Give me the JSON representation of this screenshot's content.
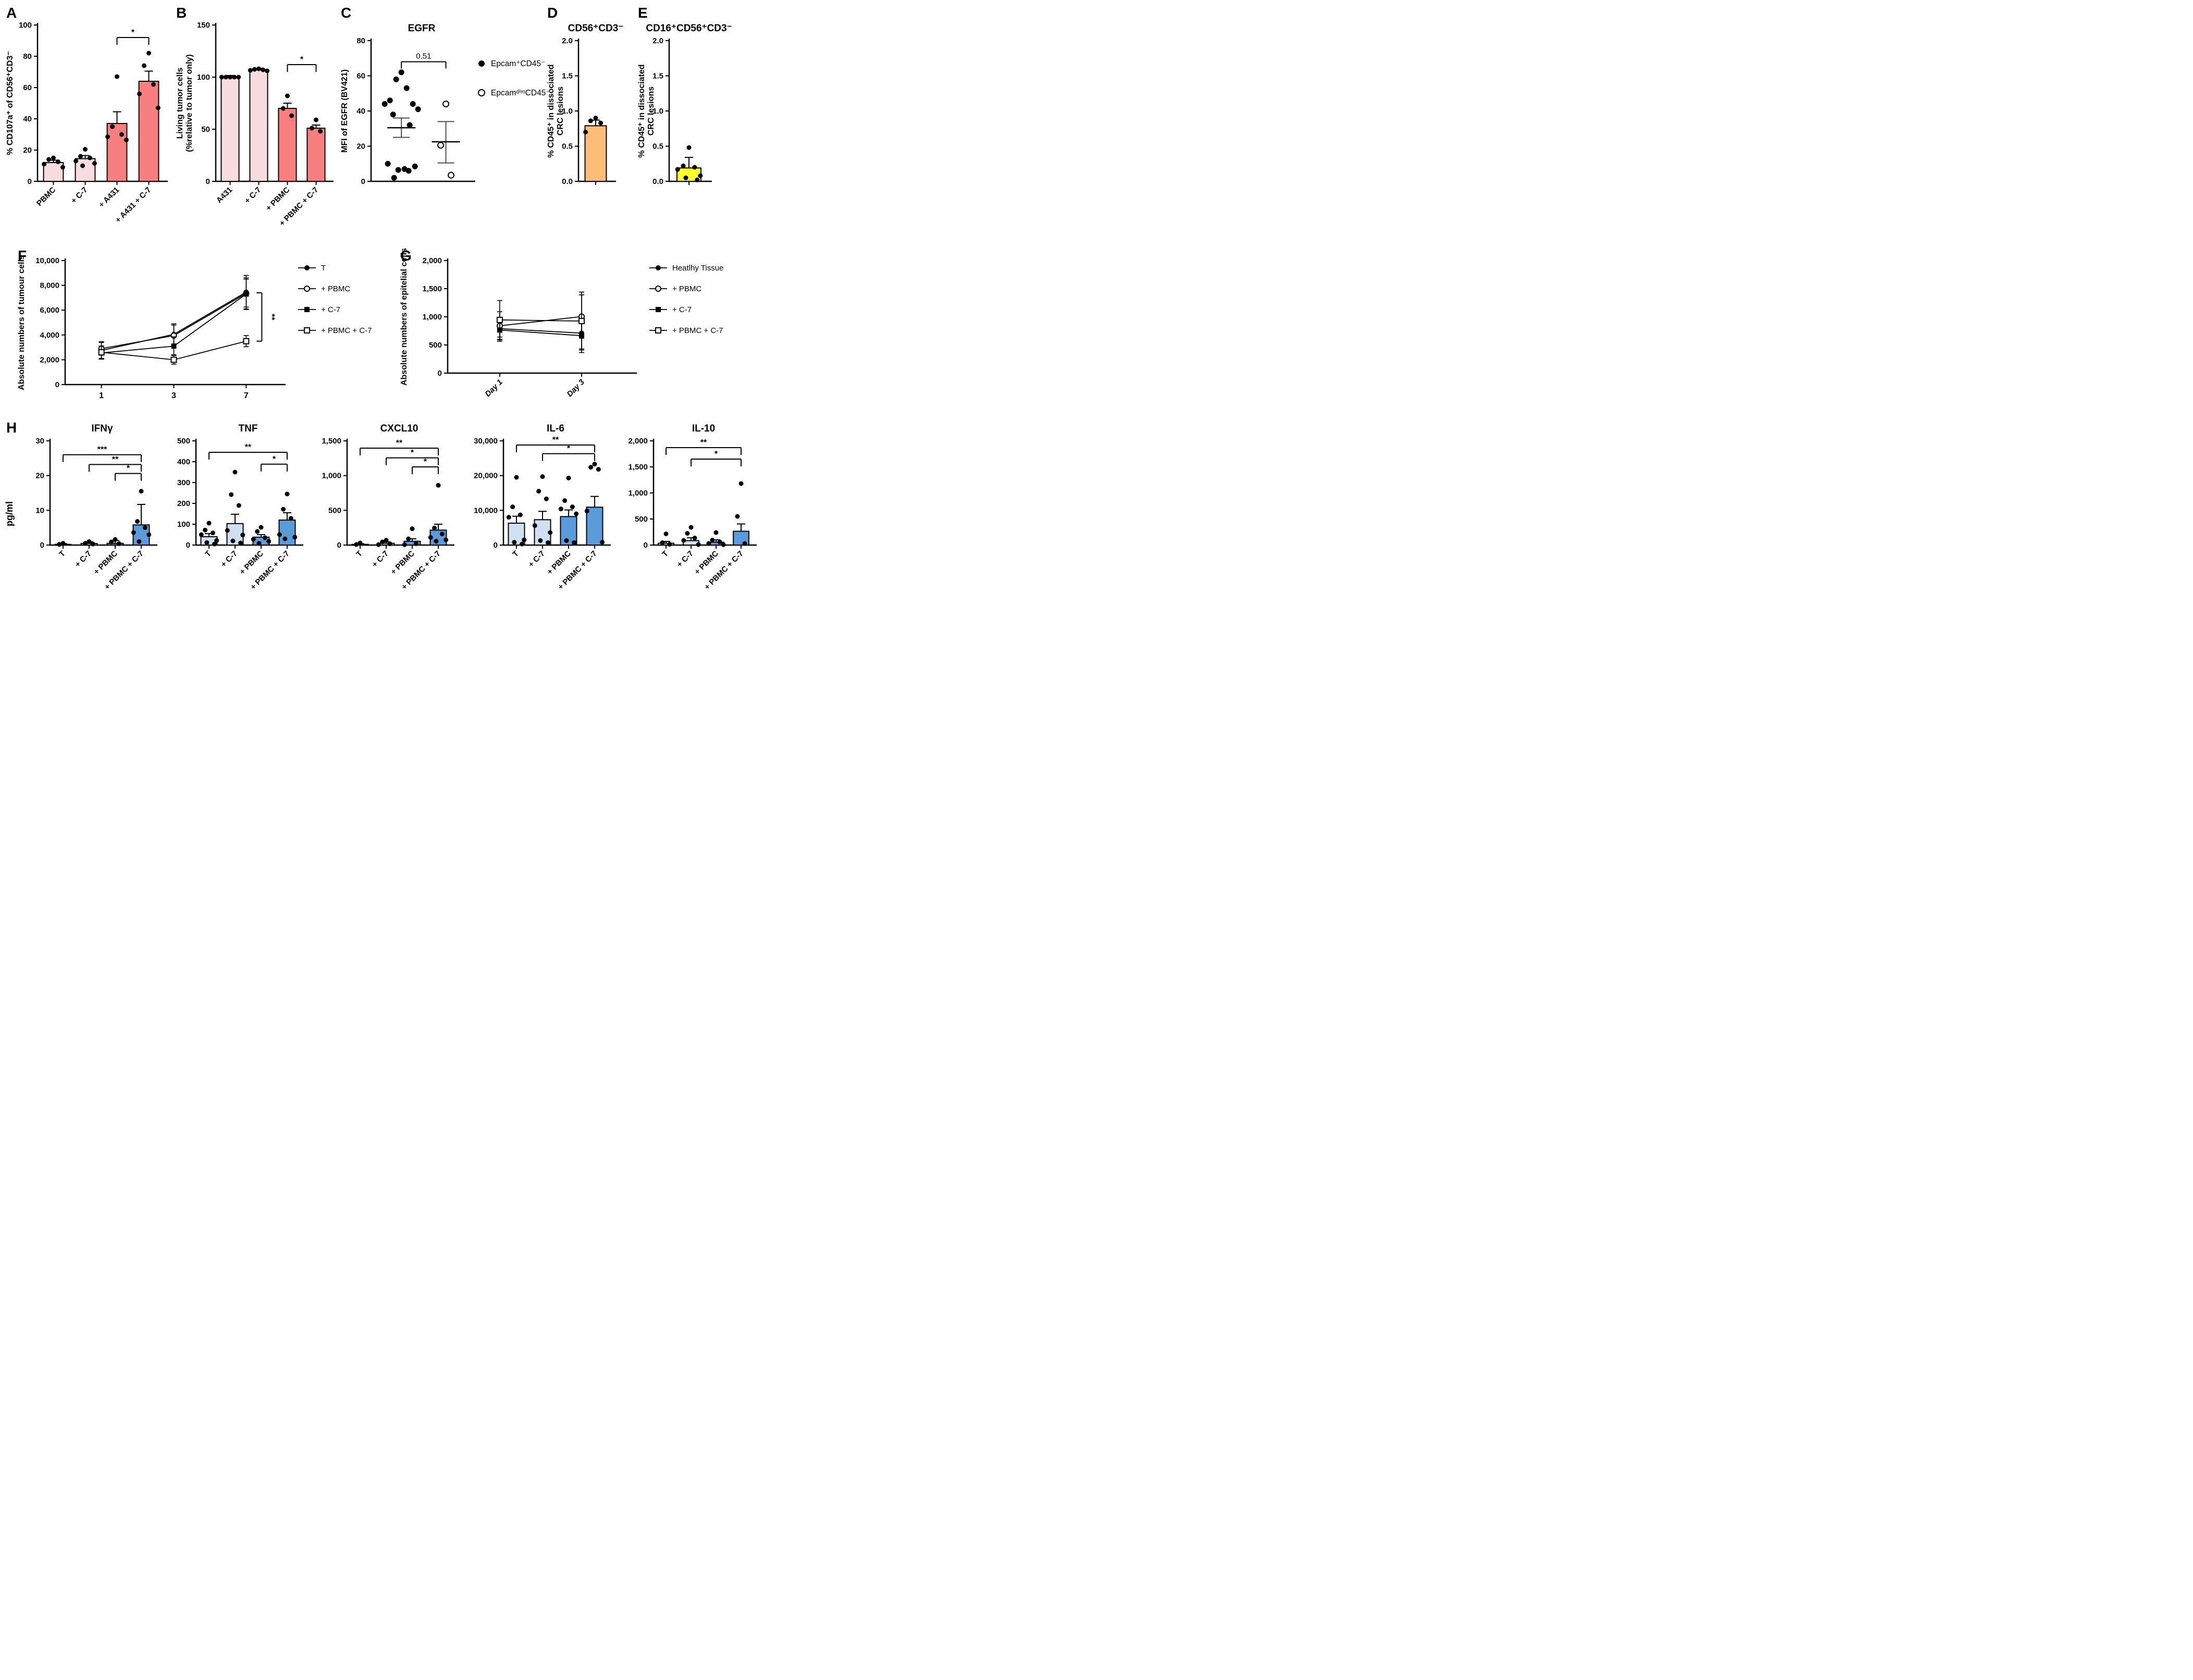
{
  "figure_description": "Multi-panel scientific figure with bar, scatter and line charts (panels A-H)",
  "colors": {
    "light_pink": "#f9dce0",
    "salmon": "#f87f80",
    "orange": "#fcbd79",
    "yellow": "#ffff2b",
    "light_blue": "#cfe0f3",
    "medium_blue": "#5b9bd9",
    "black": "#000000",
    "error_grey": "#4d4d4d"
  },
  "chart_data": [
    {
      "id": "A",
      "type": "bar",
      "panel_label": "A",
      "ylabel": "% CD107a⁺ of CD56⁺CD3⁻",
      "ylim": [
        0,
        100
      ],
      "ytick_values": [
        0,
        20,
        40,
        60,
        80,
        100
      ],
      "ytick_labels": [
        "0",
        "20",
        "40",
        "60",
        "80",
        "100"
      ],
      "categories": [
        "PBMC",
        "+ C-7",
        "+ A431",
        "+ A431 + C-7"
      ],
      "values": [
        12,
        14.5,
        37,
        64
      ],
      "errors": [
        1.5,
        2,
        7.5,
        6.5
      ],
      "bar_colors": [
        "light_pink",
        "light_pink",
        "salmon",
        "salmon"
      ],
      "points": [
        [
          15,
          14,
          12.5,
          11,
          9
        ],
        [
          20.5,
          16,
          15,
          13,
          11.5,
          10
        ],
        [
          67,
          35,
          30,
          28.5,
          26.5
        ],
        [
          82,
          74,
          62,
          56,
          47
        ]
      ],
      "sig": [
        {
          "a": 2,
          "b": 3,
          "y": 92,
          "label": "*"
        }
      ],
      "x_rotate": 45
    },
    {
      "id": "B",
      "type": "bar",
      "panel_label": "B",
      "ylabel": [
        "Living tumor cells",
        "(%relative to tumor only)"
      ],
      "ylim": [
        0,
        150
      ],
      "ytick_values": [
        0,
        50,
        100,
        150
      ],
      "ytick_labels": [
        "0",
        "50",
        "100",
        "150"
      ],
      "categories": [
        "A431",
        "+ C-7",
        "+ PBMC",
        "+ PBMC + C-7"
      ],
      "values": [
        100,
        107,
        70,
        51
      ],
      "errors": [
        1.5,
        1.5,
        5,
        3
      ],
      "bar_colors": [
        "light_pink",
        "light_pink",
        "salmon",
        "salmon"
      ],
      "points": [
        [
          100,
          100,
          100,
          100,
          100
        ],
        [
          108,
          107.5,
          107,
          106.5,
          106
        ],
        [
          82,
          70,
          63
        ],
        [
          59,
          51,
          48
        ]
      ],
      "sig": [
        {
          "a": 2,
          "b": 3,
          "y": 112,
          "label": "*"
        }
      ],
      "x_rotate": 45
    },
    {
      "id": "C",
      "type": "scatter",
      "panel_label": "C",
      "title": "EGFR",
      "ylabel": "MFI of EGFR (BV421)",
      "ylim": [
        0,
        80
      ],
      "ytick_values": [
        0,
        20,
        40,
        60,
        80
      ],
      "ytick_labels": [
        "0",
        "20",
        "40",
        "60",
        "80"
      ],
      "groups": [
        {
          "name": "Epcam⁺CD45⁻",
          "marker": "circle-filled",
          "points": [
            62,
            58,
            53,
            46,
            44,
            44,
            41,
            38,
            32,
            10,
            8.5,
            7,
            6.5,
            6,
            2
          ],
          "mean": 30.5,
          "sem_lo": 25,
          "sem_hi": 36
        },
        {
          "name": "EpcamᵈⁱᵐCD45⁻",
          "marker": "circle-open",
          "points": [
            44,
            20.5,
            3.5
          ],
          "mean": 22.5,
          "sem_lo": 10.5,
          "sem_hi": 34
        }
      ],
      "comparison": {
        "label": "0.51",
        "y": 68
      }
    },
    {
      "id": "D",
      "type": "bar",
      "panel_label": "D",
      "title": "CD56⁺CD3⁻",
      "ylabel": [
        "% CD45⁺ in dissociated",
        "CRC lesions"
      ],
      "ylim": [
        0,
        2
      ],
      "ytick_values": [
        0,
        0.5,
        1.0,
        1.5,
        2.0
      ],
      "ytick_labels": [
        "0.0",
        "0.5",
        "1.0",
        "1.5",
        "2.0"
      ],
      "categories": [
        ""
      ],
      "values": [
        0.79
      ],
      "errors": [
        0.08
      ],
      "bar_colors": [
        "orange"
      ],
      "points": [
        [
          0.9,
          0.86,
          0.83,
          0.7
        ]
      ],
      "sig": []
    },
    {
      "id": "E",
      "type": "bar",
      "panel_label": "E",
      "title": "CD16⁺CD56⁺CD3⁻",
      "ylabel": [
        "% CD45⁺ in dissociated",
        "CRC lesions"
      ],
      "ylim": [
        0,
        2
      ],
      "ytick_values": [
        0,
        0.5,
        1.0,
        1.5,
        2.0
      ],
      "ytick_labels": [
        "0.0",
        "0.5",
        "1.0",
        "1.5",
        "2.0"
      ],
      "categories": [
        ""
      ],
      "values": [
        0.19
      ],
      "errors": [
        0.15
      ],
      "bar_colors": [
        "yellow"
      ],
      "points": [
        [
          0.48,
          0.22,
          0.2,
          0.17,
          0.08,
          0.05,
          0.02
        ]
      ],
      "sig": []
    },
    {
      "id": "F",
      "type": "line",
      "panel_label": "F",
      "ylabel": "Absolute numbers of tumour cells",
      "ylim": [
        0,
        10000
      ],
      "ytick_values": [
        0,
        2000,
        4000,
        6000,
        8000,
        10000
      ],
      "ytick_labels": [
        "0",
        "2,000",
        "4,000",
        "6,000",
        "8,000",
        "10,000"
      ],
      "x_categories": [
        "1",
        "3",
        "7"
      ],
      "x_rotate": 0,
      "series": [
        {
          "name": "T",
          "marker": "circle-filled",
          "values": [
            2750,
            4050,
            7450
          ],
          "err_lo": [
            2050,
            3200,
            6100
          ],
          "err_hi": [
            3450,
            4900,
            8800
          ]
        },
        {
          "name": "+ PBMC",
          "marker": "circle-open",
          "values": [
            2900,
            3950,
            7350
          ],
          "err_lo": [
            2100,
            3050,
            6250
          ],
          "err_hi": [
            3400,
            4800,
            8600
          ]
        },
        {
          "name": "+ C-7",
          "marker": "square-filled",
          "values": [
            2550,
            3100,
            7300
          ],
          "err_lo": [
            2050,
            2350,
            6050
          ],
          "err_hi": [
            3100,
            3850,
            8500
          ]
        },
        {
          "name": "+ PBMC + C-7",
          "marker": "square-open",
          "values": [
            2600,
            2000,
            3500
          ],
          "err_lo": [
            2100,
            1650,
            3050
          ],
          "err_hi": [
            3100,
            2400,
            3950
          ]
        }
      ],
      "sig_line": {
        "label": "**",
        "x_index": 2,
        "y_top": 7400,
        "y_bottom": 3500
      }
    },
    {
      "id": "G",
      "type": "line",
      "panel_label": "G",
      "ylabel": "Absolute numbers of epitelial cells",
      "ylim": [
        0,
        2000
      ],
      "ytick_values": [
        0,
        500,
        1000,
        1500,
        2000
      ],
      "ytick_labels": [
        "0",
        "500",
        "1,000",
        "1,500",
        "2,000"
      ],
      "x_categories": [
        "Day 1",
        "Day 3"
      ],
      "x_rotate": 45,
      "x_italic": true,
      "series": [
        {
          "name": "Heatlhy Tissue",
          "marker": "circle-filled",
          "values": [
            790,
            710
          ],
          "err_lo": [
            590,
            430
          ],
          "err_hi": [
            990,
            990
          ]
        },
        {
          "name": "+ PBMC",
          "marker": "circle-open",
          "values": [
            840,
            1005
          ],
          "err_lo": [
            640,
            620
          ],
          "err_hi": [
            1090,
            1390
          ]
        },
        {
          "name": "+ C-7",
          "marker": "square-filled",
          "values": [
            765,
            665
          ],
          "err_lo": [
            565,
            365
          ],
          "err_hi": [
            965,
            965
          ]
        },
        {
          "name": "+ PBMC + C-7",
          "marker": "square-open",
          "values": [
            945,
            925
          ],
          "err_lo": [
            600,
            410
          ],
          "err_hi": [
            1290,
            1440
          ]
        }
      ]
    },
    {
      "id": "H1",
      "type": "bar",
      "panel_label": "H",
      "outer_ylabel": "pg/ml",
      "title": "IFNγ",
      "ylim": [
        0,
        30
      ],
      "ytick_values": [
        0,
        10,
        20,
        30
      ],
      "ytick_labels": [
        "0",
        "10",
        "20",
        "30"
      ],
      "categories": [
        "T",
        "+ C-7",
        "+ PBMC",
        "+ PBMC + C-7"
      ],
      "values": [
        0.2,
        0.45,
        0.5,
        5.8
      ],
      "errors": [
        0.2,
        0.5,
        0.8,
        5.9
      ],
      "bar_colors": [
        "light_blue",
        "light_blue",
        "medium_blue",
        "medium_blue"
      ],
      "points": [
        [
          0.5,
          0.2
        ],
        [
          1.0,
          0.5,
          0.3
        ],
        [
          1.6,
          0.9,
          0.4
        ],
        [
          15.5,
          6.8,
          5.0,
          3.6,
          3.0,
          1.0
        ]
      ],
      "sig": [
        {
          "a": 0,
          "b": 3,
          "y": 26,
          "label": "***"
        },
        {
          "a": 1,
          "b": 3,
          "y": 23.2,
          "label": "**"
        },
        {
          "a": 2,
          "b": 3,
          "y": 20.6,
          "label": "*"
        }
      ],
      "x_rotate": 45
    },
    {
      "id": "H2",
      "type": "bar",
      "title": "TNF",
      "ylim": [
        0,
        500
      ],
      "ytick_values": [
        0,
        100,
        200,
        300,
        400,
        500
      ],
      "ytick_labels": [
        "0",
        "100",
        "200",
        "300",
        "400",
        "500"
      ],
      "categories": [
        "T",
        "+ C-7",
        "+ PBMC",
        "+ PBMC + C-7"
      ],
      "values": [
        40,
        103,
        38,
        120
      ],
      "errors": [
        15,
        45,
        12,
        35
      ],
      "bar_colors": [
        "light_blue",
        "light_blue",
        "medium_blue",
        "medium_blue"
      ],
      "points": [
        [
          105,
          72,
          58,
          50,
          22,
          12,
          5
        ],
        [
          350,
          242,
          190,
          70,
          48,
          20,
          10
        ],
        [
          85,
          65,
          35,
          28,
          18,
          8
        ],
        [
          245,
          172,
          128,
          50,
          38,
          30
        ]
      ],
      "sig": [
        {
          "a": 0,
          "b": 3,
          "y": 445,
          "label": "**"
        },
        {
          "a": 2,
          "b": 3,
          "y": 388,
          "label": "*"
        }
      ],
      "x_rotate": 45
    },
    {
      "id": "H3",
      "type": "bar",
      "title": "CXCL10",
      "ylim": [
        0,
        1500
      ],
      "ytick_values": [
        0,
        500,
        1000,
        1500
      ],
      "ytick_labels": [
        "0",
        "500",
        "1,000",
        "1,500"
      ],
      "categories": [
        "T",
        "+ C-7",
        "+ PBMC",
        "+ PBMC + C-7"
      ],
      "values": [
        10,
        25,
        55,
        215
      ],
      "errors": [
        10,
        20,
        35,
        85
      ],
      "bar_colors": [
        "light_blue",
        "light_blue",
        "medium_blue",
        "medium_blue"
      ],
      "points": [
        [
          30,
          8
        ],
        [
          70,
          45,
          18,
          6
        ],
        [
          235,
          90,
          20,
          5
        ],
        [
          860,
          245,
          160,
          110,
          75,
          55
        ]
      ],
      "sig": [
        {
          "a": 0,
          "b": 3,
          "y": 1395,
          "label": "**"
        },
        {
          "a": 1,
          "b": 3,
          "y": 1255,
          "label": "*"
        },
        {
          "a": 2,
          "b": 3,
          "y": 1125,
          "label": "*"
        }
      ],
      "x_rotate": 45
    },
    {
      "id": "H4",
      "type": "bar",
      "title": "IL-6",
      "ylim": [
        0,
        30000
      ],
      "ytick_values": [
        0,
        10000,
        20000,
        30000
      ],
      "ytick_labels": [
        "0",
        "10,000",
        "20,000",
        "30,000"
      ],
      "categories": [
        "T",
        "+ C-7",
        "+ PBMC",
        "+ PBMC + C-7"
      ],
      "values": [
        6300,
        7300,
        8200,
        10900
      ],
      "errors": [
        2000,
        2400,
        1900,
        3100
      ],
      "bar_colors": [
        "light_blue",
        "light_blue",
        "medium_blue",
        "medium_blue"
      ],
      "points": [
        [
          19500,
          11000,
          8700,
          8000,
          1500,
          800,
          300
        ],
        [
          19700,
          15500,
          13300,
          5600,
          3600,
          1300,
          700
        ],
        [
          19300,
          12800,
          11000,
          10400,
          9000,
          1300,
          700
        ],
        [
          23300,
          22400,
          21800,
          9800,
          800
        ]
      ],
      "sig": [
        {
          "a": 0,
          "b": 3,
          "y": 28800,
          "label": "**"
        },
        {
          "a": 1,
          "b": 3,
          "y": 26300,
          "label": "*"
        }
      ],
      "x_rotate": 45
    },
    {
      "id": "H5",
      "type": "bar",
      "title": "IL-10",
      "ylim": [
        0,
        2000
      ],
      "ytick_values": [
        0,
        500,
        1000,
        1500,
        2000
      ],
      "ytick_labels": [
        "0",
        "500",
        "1,000",
        "1,500",
        "2,000"
      ],
      "categories": [
        "T",
        "+ C-7",
        "+ PBMC",
        "+ PBMC + C-7"
      ],
      "values": [
        35,
        85,
        55,
        265
      ],
      "errors": [
        35,
        55,
        45,
        140
      ],
      "bar_colors": [
        "light_blue",
        "light_blue",
        "medium_blue",
        "medium_blue"
      ],
      "points": [
        [
          215,
          45,
          15
        ],
        [
          340,
          225,
          135,
          90,
          10
        ],
        [
          240,
          95,
          60,
          30,
          8
        ],
        [
          1180,
          550,
          30
        ]
      ],
      "sig": [
        {
          "a": 0,
          "b": 3,
          "y": 1870,
          "label": "**"
        },
        {
          "a": 1,
          "b": 3,
          "y": 1650,
          "label": "*"
        }
      ],
      "x_rotate": 45
    }
  ]
}
